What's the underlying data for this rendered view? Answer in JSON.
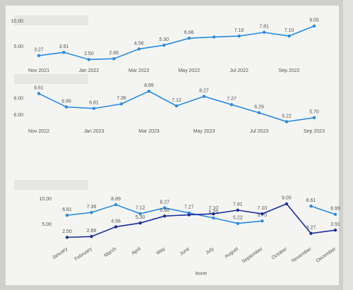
{
  "chart_data": [
    {
      "type": "line",
      "categories": [
        "Nov 2021",
        null,
        "Jan 2022",
        null,
        "Mar 2022",
        null,
        "May 2022",
        null,
        "Jul 2022",
        null,
        "Sep 2022",
        null
      ],
      "series": [
        {
          "color": "#2a8ae0",
          "values": [
            3.27,
            3.91,
            2.5,
            2.66,
            4.56,
            5.3,
            6.66,
            6.9,
            7.1,
            7.81,
            7.1,
            9.05
          ],
          "value_labels": [
            "3.27",
            "3.91",
            "2.50",
            "2.66",
            "4.56",
            "5.30",
            "6.66",
            null,
            "7.10",
            "7.81",
            "7.10",
            "9.05"
          ]
        }
      ],
      "ylim": [
        2,
        10
      ],
      "yticks": [
        {
          "value": 5,
          "label": "5.00"
        },
        {
          "value": 10,
          "label": "10.00"
        }
      ]
    },
    {
      "type": "line",
      "categories": [
        "Nov 2022",
        null,
        "Jan 2023",
        null,
        "Mar 2023",
        null,
        "May 2023",
        null,
        "Jul 2023",
        null,
        "Sep 2023"
      ],
      "series": [
        {
          "color": "#2a8ae0",
          "values": [
            8.61,
            6.99,
            6.81,
            7.36,
            8.89,
            7.12,
            8.27,
            7.27,
            6.29,
            5.22,
            5.7
          ],
          "value_labels": [
            "8.61",
            "6.99",
            "6.81",
            "7.36",
            "8.89",
            "7.12",
            "8.27",
            "7.27",
            "6.29",
            "5.22",
            "5.70"
          ]
        }
      ],
      "ylim": [
        5,
        9
      ],
      "yticks": [
        {
          "value": 6,
          "label": "6.00"
        },
        {
          "value": 8,
          "label": "8.00"
        }
      ]
    },
    {
      "type": "line",
      "x_label": "Month",
      "categories": [
        "January",
        "February",
        "March",
        "April",
        "May",
        "June",
        "July",
        "August",
        "September",
        "October",
        "November",
        "December"
      ],
      "series": [
        {
          "color": "#2a8ae0",
          "values": [
            6.81,
            7.36,
            8.89,
            7.12,
            8.27,
            7.27,
            6.29,
            5.22,
            5.7,
            null,
            8.61,
            6.99
          ],
          "value_labels": [
            "6.81",
            "7.36",
            "8.89",
            "7.12",
            "8.27",
            "7.27",
            "6.29",
            "5.22",
            "5.70",
            null,
            "8.61",
            "6.99"
          ]
        },
        {
          "color": "#1c2c9c",
          "values": [
            2.5,
            2.66,
            4.56,
            5.3,
            6.66,
            6.9,
            7.1,
            7.81,
            7.1,
            9.05,
            3.27,
            3.91
          ],
          "value_labels": [
            "2.50",
            "2.66",
            "4.56",
            "5.30",
            "6.66",
            null,
            "7.10",
            "7.81",
            "7.10",
            "9.05",
            "3.27",
            "3.91"
          ]
        }
      ],
      "ylim": [
        2,
        10
      ],
      "yticks": [
        {
          "value": 5,
          "label": "5.00"
        },
        {
          "value": 10,
          "label": "10.00"
        }
      ],
      "rotate_x_labels": true
    }
  ]
}
